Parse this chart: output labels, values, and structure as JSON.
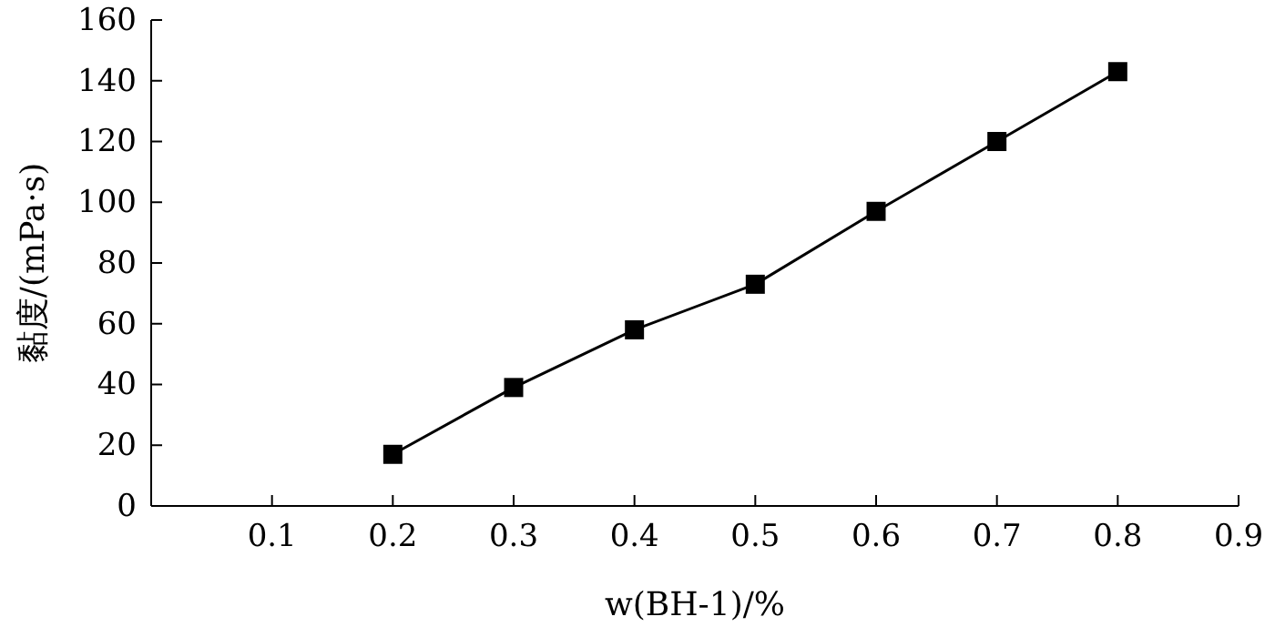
{
  "chart_data": {
    "type": "line",
    "xlabel": "w(BH-1)/%",
    "ylabel": "黏度/(mPa·s)",
    "x": [
      0.2,
      0.3,
      0.4,
      0.5,
      0.6,
      0.7,
      0.8
    ],
    "series": [
      {
        "color": "#000000",
        "values": [
          17,
          39,
          58,
          73,
          97,
          120,
          143
        ]
      }
    ],
    "xlim": [
      0,
      0.9
    ],
    "xticks": [
      0.1,
      0.2,
      0.3,
      0.4,
      0.5,
      0.6,
      0.7,
      0.8,
      0.9
    ],
    "ylim": [
      0,
      160
    ],
    "yticks": [
      0,
      20,
      40,
      60,
      80,
      100,
      120,
      140,
      160
    ],
    "grid": false,
    "marker": "square",
    "line_style": "solid"
  }
}
